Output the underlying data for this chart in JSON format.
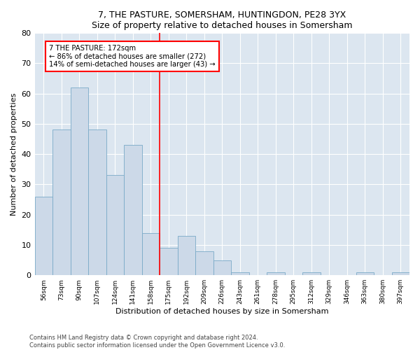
{
  "title1": "7, THE PASTURE, SOMERSHAM, HUNTINGDON, PE28 3YX",
  "title2": "Size of property relative to detached houses in Somersham",
  "xlabel": "Distribution of detached houses by size in Somersham",
  "ylabel": "Number of detached properties",
  "categories": [
    "56sqm",
    "73sqm",
    "90sqm",
    "107sqm",
    "124sqm",
    "141sqm",
    "158sqm",
    "175sqm",
    "192sqm",
    "209sqm",
    "226sqm",
    "243sqm",
    "261sqm",
    "278sqm",
    "295sqm",
    "312sqm",
    "329sqm",
    "346sqm",
    "363sqm",
    "380sqm",
    "397sqm"
  ],
  "values": [
    26,
    48,
    62,
    48,
    33,
    43,
    14,
    9,
    13,
    8,
    5,
    1,
    0,
    1,
    0,
    1,
    0,
    0,
    1,
    0,
    1
  ],
  "bar_color": "#ccd9e8",
  "bar_edge_color": "#7aaac8",
  "vline_x_index": 6.5,
  "annotation_text_line1": "7 THE PASTURE: 172sqm",
  "annotation_text_line2": "← 86% of detached houses are smaller (272)",
  "annotation_text_line3": "14% of semi-detached houses are larger (43) →",
  "annotation_box_color": "white",
  "annotation_box_edge": "red",
  "vline_color": "red",
  "ylim": [
    0,
    80
  ],
  "yticks": [
    0,
    10,
    20,
    30,
    40,
    50,
    60,
    70,
    80
  ],
  "bg_color": "#dce6f0",
  "footer1": "Contains HM Land Registry data © Crown copyright and database right 2024.",
  "footer2": "Contains public sector information licensed under the Open Government Licence v3.0."
}
